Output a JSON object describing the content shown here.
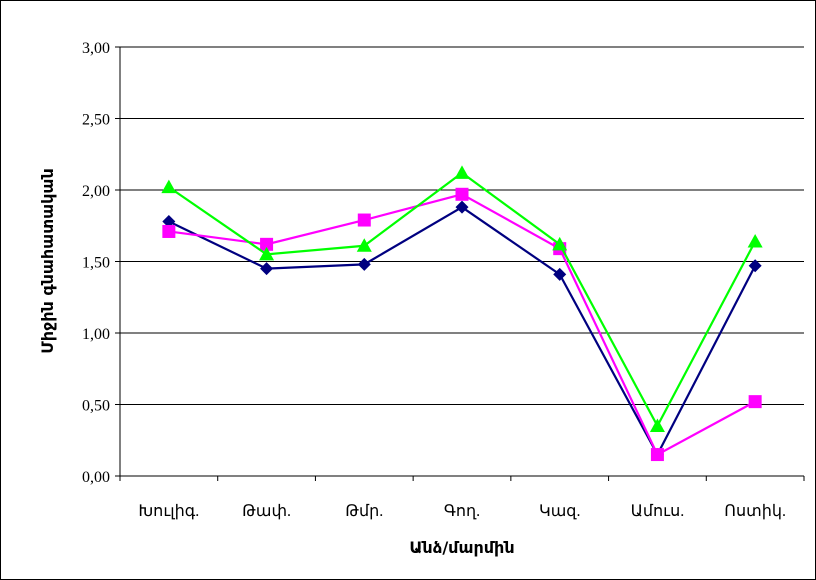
{
  "chart_data": {
    "type": "line",
    "title": "",
    "xlabel": "Անձ/մարմին",
    "ylabel": "Միջին գնահատական",
    "ylim": [
      0,
      3
    ],
    "yticks": [
      "0,00",
      "0,50",
      "1,00",
      "1,50",
      "2,00",
      "2,50",
      "3,00"
    ],
    "categories": [
      "Խուլիգ.",
      "Թափ.",
      "Թմր.",
      "Գող.",
      "Կազ.",
      "Ամուս.",
      "Ոստիկ."
    ],
    "grid": true,
    "legend": "none",
    "series": [
      {
        "marker": "diamond",
        "color": "#000080",
        "values": [
          1.78,
          1.45,
          1.48,
          1.88,
          1.41,
          0.15,
          1.47
        ]
      },
      {
        "marker": "square",
        "color": "#ff00ff",
        "values": [
          1.71,
          1.62,
          1.79,
          1.97,
          1.59,
          0.15,
          0.52
        ]
      },
      {
        "marker": "triangle",
        "color": "#00ff00",
        "values": [
          2.02,
          1.55,
          1.61,
          2.12,
          1.62,
          0.35,
          1.64
        ]
      }
    ]
  }
}
